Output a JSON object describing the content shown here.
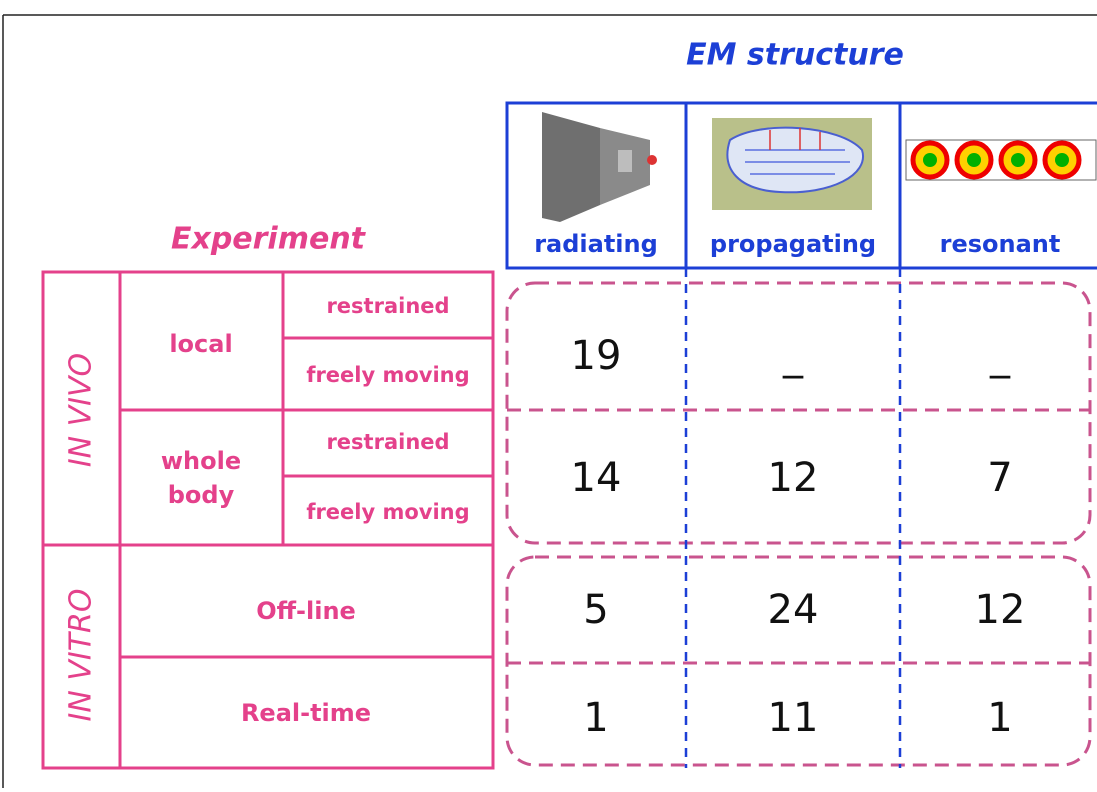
{
  "em_structure": {
    "title": "EM structure",
    "columns": [
      "radiating",
      "propagating",
      "resonant"
    ]
  },
  "experiment": {
    "title": "Experiment",
    "in_vivo": {
      "label": "IN VIVO",
      "groups": [
        {
          "label": "local",
          "conditions": [
            "restrained",
            "freely moving"
          ]
        },
        {
          "label": "whole body",
          "conditions": [
            "restrained",
            "freely moving"
          ]
        }
      ]
    },
    "in_vitro": {
      "label": "IN VITRO",
      "rows": [
        "Off-line",
        "Real-time"
      ]
    }
  },
  "table": {
    "rows": [
      [
        "19",
        "_",
        "_"
      ],
      [
        "14",
        "12",
        "7"
      ],
      [
        "5",
        "24",
        "12"
      ],
      [
        "1",
        "11",
        "1"
      ]
    ]
  }
}
